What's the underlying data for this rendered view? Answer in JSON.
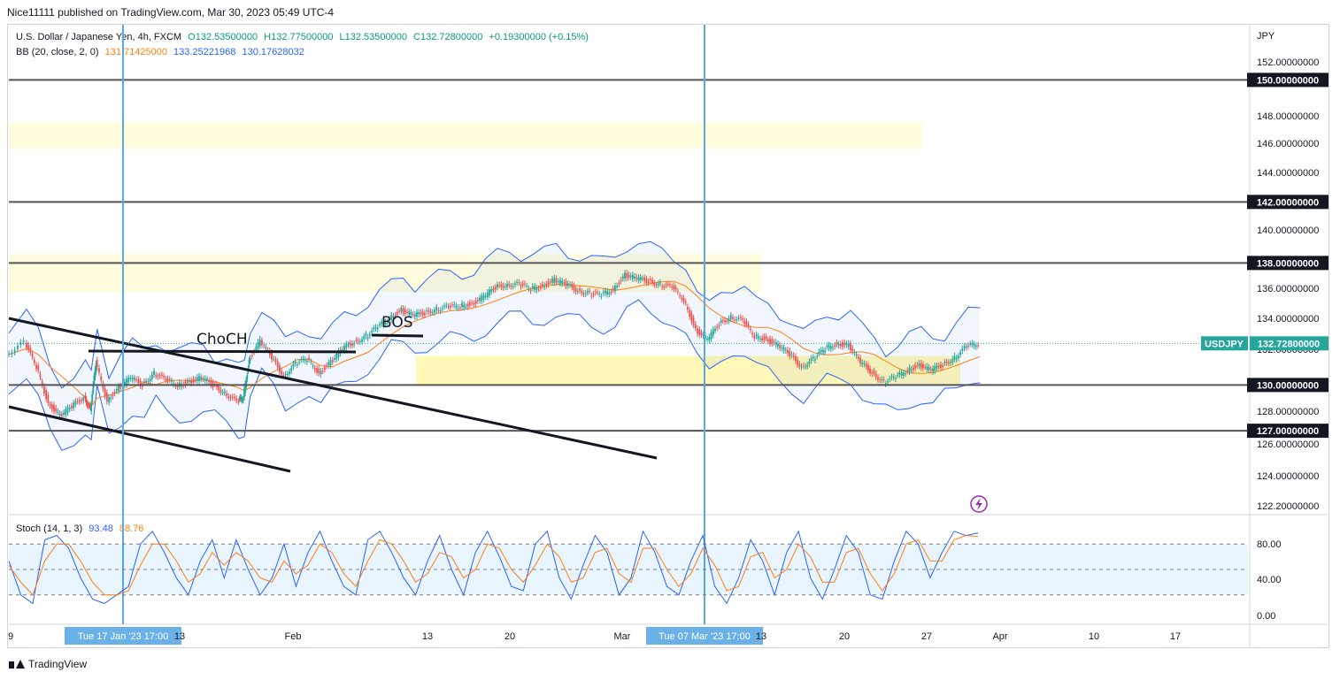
{
  "header": {
    "published": "Nice11111 published on TradingView.com, Mar 30, 2023 05:49 UTC-4"
  },
  "legend": {
    "symbol": "U.S. Dollar / Japanese Yen, 4h, FXCM",
    "open": "O132.53500000",
    "high": "H132.77500000",
    "low": "L132.53500000",
    "close": "C132.72800000",
    "change": "+0.19300000 (+0.15%)",
    "bb_label": "BB (20, close, 2, 0)",
    "bb_basis": "131.71425000",
    "bb_upper": "133.25221968",
    "bb_lower": "130.17628032",
    "stoch_label": "Stoch (14, 1, 3)",
    "stoch_k": "93.48",
    "stoch_d": "88.76"
  },
  "footer": {
    "brand": "TradingView"
  },
  "colors": {
    "bull": "#26a69a",
    "bear": "#ef5350",
    "bb_band": "#2962ff",
    "bb_basis": "#ff7f0e",
    "vline": "#5aa9e6",
    "zone": "#fff59d",
    "stoch_k": "#2962ff",
    "stoch_d": "#ff7f0e"
  },
  "chart_data": {
    "type": "candlestick",
    "symbol": "USDJPY",
    "currency_label": "JPY",
    "price_axis_ticks": [
      "152.00000000",
      "148.00000000",
      "146.00000000",
      "144.00000000",
      "140.00000000",
      "136.00000000",
      "134.00000000",
      "132.00000000",
      "128.00000000",
      "126.00000000",
      "124.00000000",
      "122.20000000"
    ],
    "ylim": [
      121.5,
      153.5
    ],
    "x_axis_labels": [
      "9",
      "13",
      "Feb",
      "13",
      "20",
      "Mar",
      "13",
      "20",
      "27",
      "Apr",
      "10",
      "17"
    ],
    "horizontal_levels": [
      {
        "price": 150,
        "label": "150.00000000"
      },
      {
        "price": 142,
        "label": "142.00000000"
      },
      {
        "price": 138,
        "label": "138.00000000"
      },
      {
        "price": 130,
        "label": "130.00000000"
      },
      {
        "price": 127,
        "label": "127.00000000"
      }
    ],
    "last_price": {
      "price": 132.728,
      "label": "132.72800000",
      "symbol": "USDJPY"
    },
    "zones": [
      {
        "from": 145.5,
        "to": 147.2
      },
      {
        "from": 136.1,
        "to": 138.6
      },
      {
        "from": 130.0,
        "to": 131.9
      }
    ],
    "annotations": [
      {
        "text": "ChoCH"
      },
      {
        "text": "BOS"
      }
    ],
    "date_markers": [
      {
        "label": "Tue 17 Jan '23   17:00"
      },
      {
        "label": "Tue 07 Mar '23   17:00"
      }
    ],
    "close_path": [
      [
        0,
        132.0
      ],
      [
        1.5,
        132.8
      ],
      [
        2.5,
        131.2
      ],
      [
        3.5,
        128.8
      ],
      [
        4.5,
        128.0
      ],
      [
        5.5,
        128.6
      ],
      [
        6.5,
        129.2
      ],
      [
        7,
        128.4
      ],
      [
        7.5,
        131.5
      ],
      [
        8.5,
        129.0
      ],
      [
        9.5,
        129.8
      ],
      [
        10.5,
        130.5
      ],
      [
        11.5,
        130.0
      ],
      [
        12.5,
        130.8
      ],
      [
        13.5,
        130.3
      ],
      [
        14.5,
        130.0
      ],
      [
        15.5,
        130.2
      ],
      [
        16.5,
        130.5
      ],
      [
        17.5,
        130.0
      ],
      [
        18.5,
        129.5
      ],
      [
        19.5,
        128.9
      ],
      [
        20,
        129.2
      ],
      [
        20.5,
        131.6
      ],
      [
        21.5,
        132.9
      ],
      [
        22.5,
        131.8
      ],
      [
        23.5,
        130.6
      ],
      [
        24.5,
        131.4
      ],
      [
        25.5,
        131.7
      ],
      [
        26.5,
        130.8
      ],
      [
        27.5,
        131.5
      ],
      [
        28.5,
        132.4
      ],
      [
        29.5,
        132.8
      ],
      [
        30.5,
        133.2
      ],
      [
        31.5,
        133.8
      ],
      [
        32.5,
        134.4
      ],
      [
        33.5,
        134.9
      ],
      [
        34.5,
        134.6
      ],
      [
        35.5,
        134.7
      ],
      [
        36.5,
        135.0
      ],
      [
        37.5,
        135.1
      ],
      [
        38.5,
        135.2
      ],
      [
        39.5,
        135.3
      ],
      [
        40.5,
        135.8
      ],
      [
        41.5,
        136.4
      ],
      [
        42.5,
        136.6
      ],
      [
        43.5,
        136.6
      ],
      [
        44.5,
        136.3
      ],
      [
        45.5,
        136.5
      ],
      [
        46.5,
        136.9
      ],
      [
        47.5,
        136.6
      ],
      [
        48.5,
        136.2
      ],
      [
        49.5,
        136.0
      ],
      [
        50.5,
        135.9
      ],
      [
        51.5,
        136.3
      ],
      [
        52.5,
        137.2
      ],
      [
        53.5,
        137.0
      ],
      [
        54.5,
        136.8
      ],
      [
        55.5,
        136.6
      ],
      [
        56.5,
        136.4
      ],
      [
        57.5,
        135.6
      ],
      [
        58.5,
        133.6
      ],
      [
        59.5,
        133.0
      ],
      [
        60.5,
        134.0
      ],
      [
        61.5,
        134.5
      ],
      [
        62.5,
        134.2
      ],
      [
        63.5,
        133.2
      ],
      [
        64.5,
        133.0
      ],
      [
        65.5,
        132.6
      ],
      [
        66.5,
        132.0
      ],
      [
        67.5,
        131.2
      ],
      [
        68.5,
        131.7
      ],
      [
        69.5,
        132.4
      ],
      [
        70.5,
        132.7
      ],
      [
        71.5,
        132.6
      ],
      [
        72.5,
        131.5
      ],
      [
        73.5,
        130.8
      ],
      [
        74.5,
        130.2
      ],
      [
        75.5,
        130.5
      ],
      [
        76.5,
        131.0
      ],
      [
        77.5,
        131.3
      ],
      [
        78.5,
        131.0
      ],
      [
        79.5,
        131.3
      ],
      [
        80.5,
        131.8
      ],
      [
        81.5,
        132.5
      ],
      [
        82.5,
        132.73
      ]
    ],
    "stochastic": {
      "label": "Stoch (14, 1, 3)",
      "k_last": 93.48,
      "d_last": 88.76,
      "ticks": [
        "80.00",
        "40.00",
        "0.00"
      ],
      "levels": [
        80,
        50,
        20
      ],
      "k": [
        60,
        20,
        10,
        85,
        90,
        75,
        40,
        15,
        10,
        20,
        30,
        80,
        95,
        70,
        40,
        20,
        60,
        85,
        40,
        85,
        50,
        20,
        40,
        80,
        30,
        70,
        95,
        60,
        30,
        20,
        85,
        95,
        70,
        40,
        20,
        60,
        90,
        50,
        20,
        70,
        95,
        65,
        30,
        25,
        80,
        95,
        40,
        15,
        55,
        90,
        70,
        20,
        40,
        95,
        70,
        30,
        20,
        60,
        90,
        30,
        10,
        40,
        85,
        60,
        20,
        70,
        95,
        40,
        15,
        50,
        90,
        70,
        20,
        15,
        60,
        95,
        80,
        40,
        70,
        95,
        90,
        93
      ],
      "d": [
        55,
        35,
        20,
        60,
        80,
        80,
        60,
        35,
        20,
        20,
        25,
        55,
        80,
        80,
        60,
        35,
        45,
        70,
        55,
        70,
        60,
        40,
        35,
        60,
        45,
        55,
        80,
        70,
        45,
        30,
        60,
        85,
        80,
        60,
        35,
        45,
        70,
        65,
        40,
        50,
        80,
        75,
        50,
        35,
        55,
        80,
        65,
        35,
        40,
        70,
        75,
        45,
        35,
        75,
        75,
        50,
        30,
        45,
        75,
        55,
        25,
        30,
        65,
        70,
        40,
        50,
        80,
        65,
        35,
        35,
        70,
        75,
        45,
        25,
        45,
        80,
        85,
        60,
        60,
        85,
        90,
        88.76
      ]
    },
    "bollinger": {
      "label": "BB (20, close, 2, 0)",
      "basis": 131.71425,
      "upper": 133.25221968,
      "lower": 130.17628032
    }
  }
}
